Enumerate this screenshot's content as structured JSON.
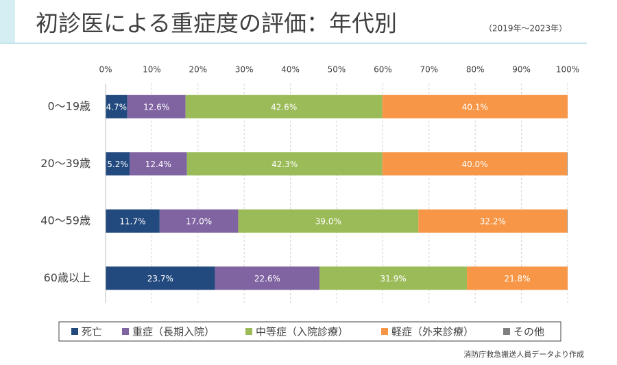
{
  "chart_data": {
    "type": "stacked-bar-horizontal",
    "title": "初診医による重症度の評価：年代別",
    "subtitle": "（2019年～2023年）",
    "source": "消防庁救急搬送人員データより作成",
    "categories": [
      "0～19歳",
      "20～39歳",
      "40～59歳",
      "60歳以上"
    ],
    "series": [
      {
        "name": "死亡",
        "color": "#234a7e",
        "values": [
          4.7,
          5.2,
          11.7,
          23.7
        ],
        "value_labels": [
          "4.7%",
          "5.2%",
          "11.7%",
          "23.7%"
        ]
      },
      {
        "name": "重症（長期入院）",
        "color": "#8064a2",
        "values": [
          12.6,
          12.4,
          17.0,
          22.6
        ],
        "value_labels": [
          "12.6%",
          "12.4%",
          "17.0%",
          "22.6%"
        ]
      },
      {
        "name": "中等症（入院診療）",
        "color": "#9bbb59",
        "values": [
          42.6,
          42.3,
          39.0,
          31.9
        ],
        "value_labels": [
          "42.6%",
          "42.3%",
          "39.0%",
          "31.9%"
        ]
      },
      {
        "name": "軽症（外来診療）",
        "color": "#f79646",
        "values": [
          40.1,
          40.0,
          32.2,
          21.8
        ],
        "value_labels": [
          "40.1%",
          "40.0%",
          "32.2%",
          "21.8%"
        ]
      },
      {
        "name": "その他",
        "color": "#7f7f7f",
        "values": [
          0,
          0.1,
          0.1,
          0
        ]
      }
    ],
    "xlim": [
      0,
      100
    ],
    "xticks": [
      {
        "value": 0,
        "label": "0%"
      },
      {
        "value": 10,
        "label": "10%"
      },
      {
        "value": 20,
        "label": "20%"
      },
      {
        "value": 30,
        "label": "30%"
      },
      {
        "value": 40,
        "label": "40%"
      },
      {
        "value": 50,
        "label": "50%"
      },
      {
        "value": 60,
        "label": "60%"
      },
      {
        "value": 70,
        "label": "70%"
      },
      {
        "value": 80,
        "label": "80%"
      },
      {
        "value": 90,
        "label": "90%"
      },
      {
        "value": 100,
        "label": "100%"
      }
    ],
    "grid": true
  }
}
